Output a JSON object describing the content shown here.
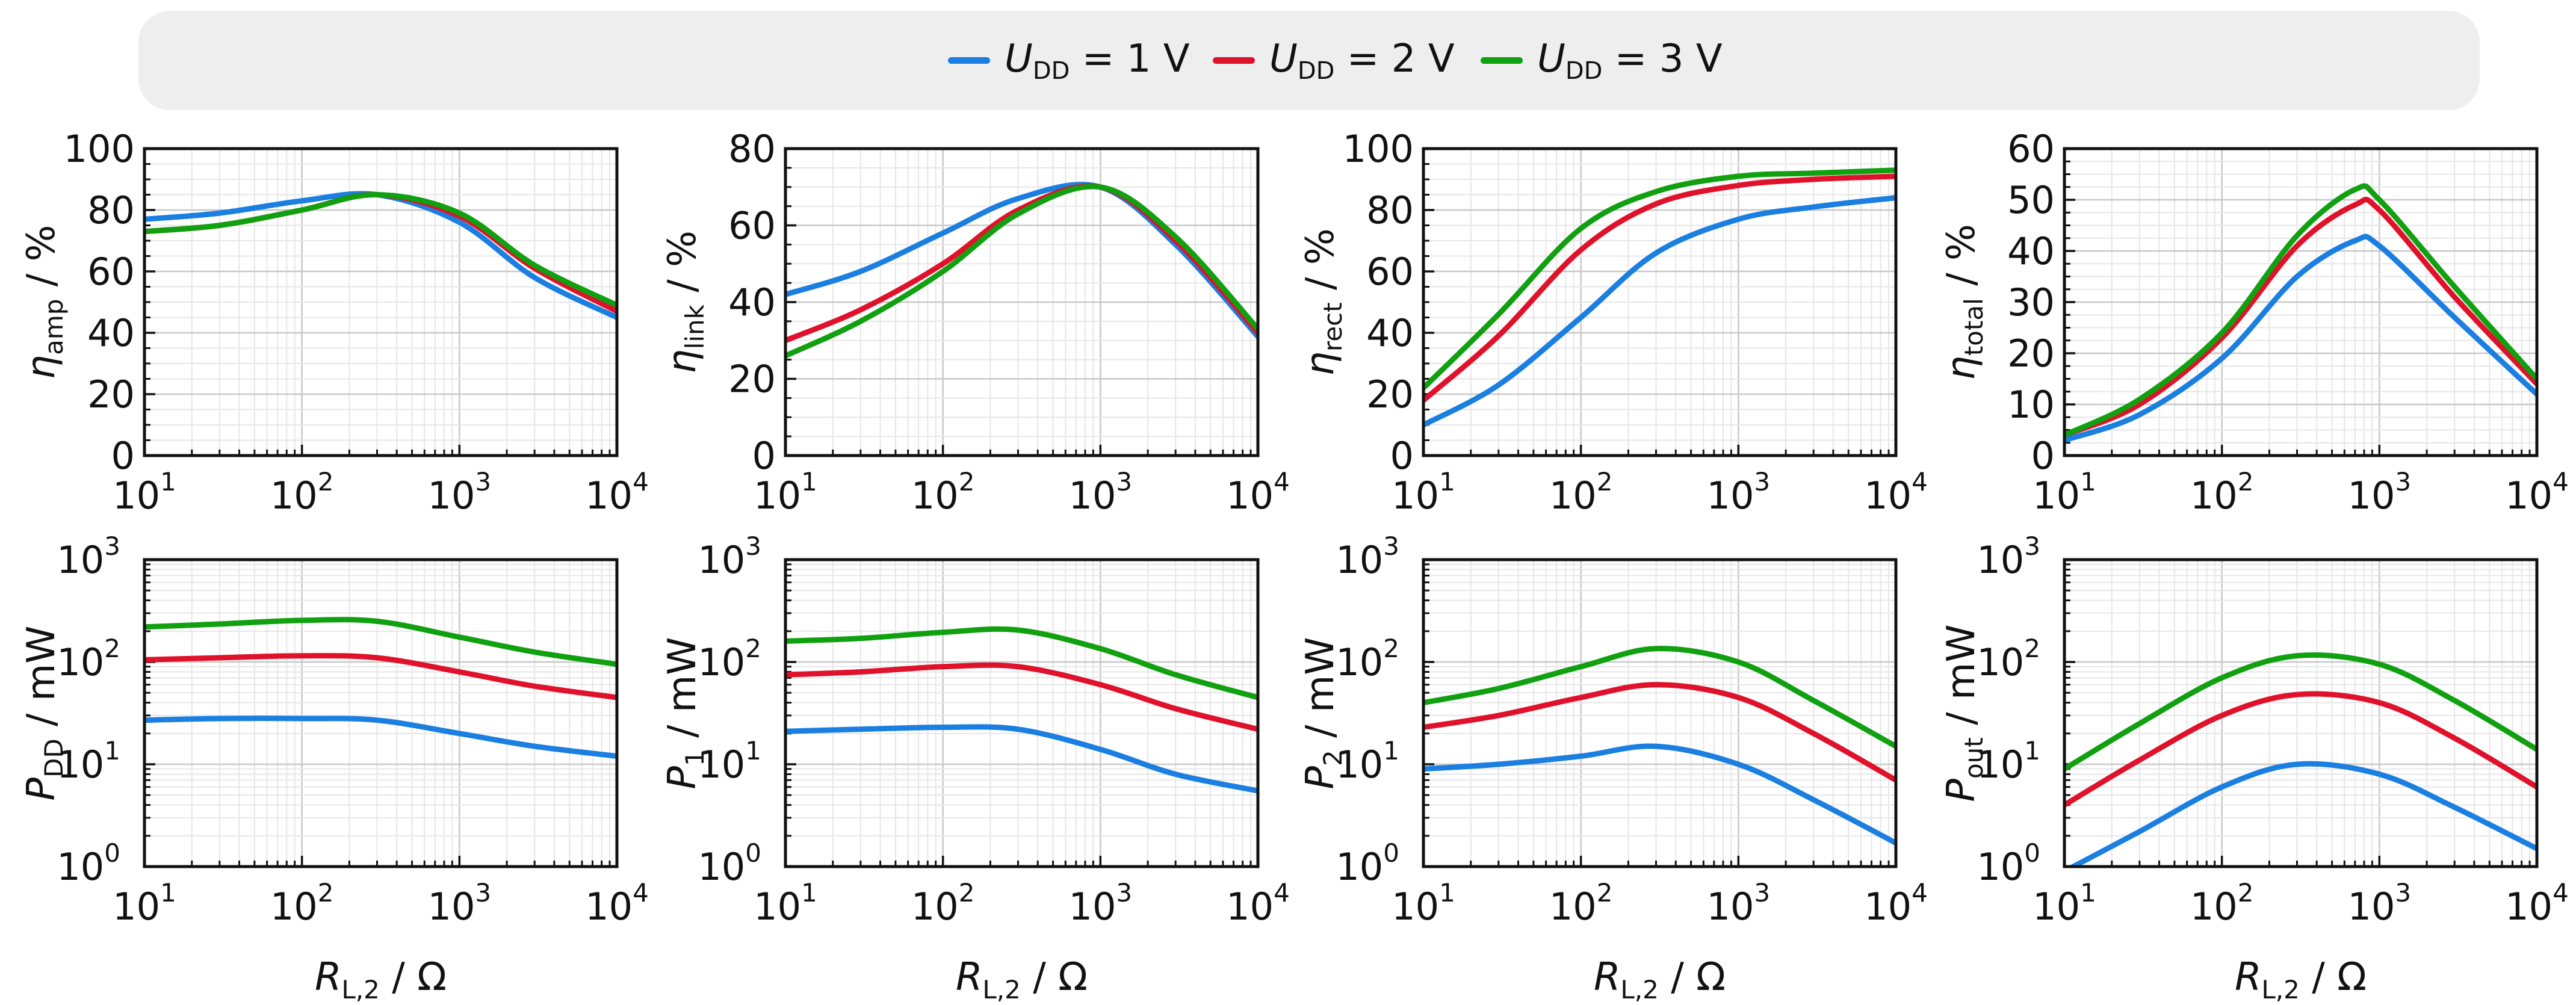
{
  "legend": [
    {
      "var": "U",
      "sub": "DD",
      "rest": " = 1 V",
      "color": "#1a7fe0"
    },
    {
      "var": "U",
      "sub": "DD",
      "rest": " = 2 V",
      "color": "#e0122b"
    },
    {
      "var": "U",
      "sub": "DD",
      "rest": " = 3 V",
      "color": "#10a010"
    }
  ],
  "x_axis_label": {
    "var": "R",
    "sub": "L,2",
    "rest": " / Ω"
  },
  "chart_data": [
    {
      "type": "line",
      "x_scale": "log",
      "xlim": [
        10,
        10000
      ],
      "y_scale": "linear",
      "ylim": [
        0,
        100
      ],
      "yticks": [
        0,
        20,
        40,
        60,
        80,
        100
      ],
      "ylabel": {
        "var": "η",
        "sub": "amp",
        "rest": " / %"
      },
      "x": [
        10,
        30,
        100,
        300,
        1000,
        3000,
        10000
      ],
      "series": [
        {
          "name": "U_DD = 1 V",
          "values": [
            77,
            79,
            83,
            85,
            76,
            58,
            45
          ]
        },
        {
          "name": "U_DD = 2 V",
          "values": [
            73,
            75,
            80,
            85,
            78,
            61,
            47
          ]
        },
        {
          "name": "U_DD = 3 V",
          "values": [
            73,
            75,
            80,
            85,
            79,
            62,
            49
          ]
        }
      ]
    },
    {
      "type": "line",
      "x_scale": "log",
      "xlim": [
        10,
        10000
      ],
      "y_scale": "linear",
      "ylim": [
        0,
        80
      ],
      "yticks": [
        0,
        20,
        40,
        60,
        80
      ],
      "ylabel": {
        "var": "η",
        "sub": "link",
        "rest": " / %"
      },
      "x": [
        10,
        30,
        100,
        300,
        1000,
        3000,
        10000
      ],
      "series": [
        {
          "name": "U_DD = 1 V",
          "values": [
            42,
            48,
            58,
            67,
            70,
            55,
            31
          ]
        },
        {
          "name": "U_DD = 2 V",
          "values": [
            30,
            38,
            50,
            64,
            70,
            56,
            32
          ]
        },
        {
          "name": "U_DD = 3 V",
          "values": [
            26,
            35,
            48,
            63,
            70,
            57,
            33
          ]
        }
      ]
    },
    {
      "type": "line",
      "x_scale": "log",
      "xlim": [
        10,
        10000
      ],
      "y_scale": "linear",
      "ylim": [
        0,
        100
      ],
      "yticks": [
        0,
        20,
        40,
        60,
        80,
        100
      ],
      "ylabel": {
        "var": "η",
        "sub": "rect",
        "rest": " / %"
      },
      "x": [
        10,
        30,
        100,
        300,
        1000,
        3000,
        10000
      ],
      "series": [
        {
          "name": "U_DD = 1 V",
          "values": [
            10,
            23,
            45,
            66,
            77,
            81,
            84
          ]
        },
        {
          "name": "U_DD = 2 V",
          "values": [
            18,
            39,
            67,
            82,
            88,
            90,
            91
          ]
        },
        {
          "name": "U_DD = 3 V",
          "values": [
            22,
            46,
            74,
            86,
            91,
            92,
            93
          ]
        }
      ]
    },
    {
      "type": "line",
      "x_scale": "log",
      "xlim": [
        10,
        10000
      ],
      "y_scale": "linear",
      "ylim": [
        0,
        60
      ],
      "yticks": [
        0,
        10,
        20,
        30,
        40,
        50,
        60
      ],
      "ylabel": {
        "var": "η",
        "sub": "total",
        "rest": " / %"
      },
      "x": [
        10,
        30,
        100,
        300,
        700,
        1000,
        3000,
        10000
      ],
      "series": [
        {
          "name": "U_DD = 1 V",
          "values": [
            3,
            8,
            19,
            35,
            42,
            41,
            27,
            12
          ]
        },
        {
          "name": "U_DD = 2 V",
          "values": [
            4,
            10,
            23,
            41,
            49,
            48,
            31,
            14
          ]
        },
        {
          "name": "U_DD = 3 V",
          "values": [
            4,
            11,
            24,
            43,
            52,
            50,
            33,
            15
          ]
        }
      ]
    },
    {
      "type": "line",
      "x_scale": "log",
      "xlim": [
        10,
        10000
      ],
      "y_scale": "log",
      "ylim": [
        1,
        1000
      ],
      "yticks": [
        1,
        10,
        100,
        1000
      ],
      "ylabel": {
        "var": "P",
        "sub": "DD",
        "rest": " / mW"
      },
      "x": [
        10,
        30,
        100,
        300,
        1000,
        3000,
        10000
      ],
      "series": [
        {
          "name": "U_DD = 1 V",
          "values": [
            27,
            28,
            28,
            27,
            20,
            15,
            12
          ]
        },
        {
          "name": "U_DD = 2 V",
          "values": [
            105,
            110,
            115,
            110,
            80,
            58,
            45
          ]
        },
        {
          "name": "U_DD = 3 V",
          "values": [
            220,
            235,
            255,
            250,
            175,
            125,
            95
          ]
        }
      ]
    },
    {
      "type": "line",
      "x_scale": "log",
      "xlim": [
        10,
        10000
      ],
      "y_scale": "log",
      "ylim": [
        1,
        1000
      ],
      "yticks": [
        1,
        10,
        100,
        1000
      ],
      "ylabel": {
        "var": "P",
        "sub": "1",
        "rest": " / mW"
      },
      "x": [
        10,
        30,
        100,
        300,
        1000,
        3000,
        10000
      ],
      "series": [
        {
          "name": "U_DD = 1 V",
          "values": [
            21,
            22,
            23,
            22,
            14,
            8,
            5.5
          ]
        },
        {
          "name": "U_DD = 2 V",
          "values": [
            75,
            80,
            90,
            90,
            60,
            35,
            22
          ]
        },
        {
          "name": "U_DD = 3 V",
          "values": [
            160,
            170,
            195,
            205,
            135,
            75,
            45
          ]
        }
      ]
    },
    {
      "type": "line",
      "x_scale": "log",
      "xlim": [
        10,
        10000
      ],
      "y_scale": "log",
      "ylim": [
        1,
        1000
      ],
      "yticks": [
        1,
        10,
        100,
        1000
      ],
      "ylabel": {
        "var": "P",
        "sub": "2",
        "rest": " / mW"
      },
      "x": [
        10,
        30,
        100,
        300,
        1000,
        3000,
        10000
      ],
      "series": [
        {
          "name": "U_DD = 1 V",
          "values": [
            9,
            10,
            12,
            15,
            10,
            4.5,
            1.7
          ]
        },
        {
          "name": "U_DD = 2 V",
          "values": [
            23,
            30,
            45,
            60,
            45,
            20,
            7
          ]
        },
        {
          "name": "U_DD = 3 V",
          "values": [
            40,
            55,
            90,
            135,
            100,
            42,
            15
          ]
        }
      ]
    },
    {
      "type": "line",
      "x_scale": "log",
      "xlim": [
        10,
        10000
      ],
      "y_scale": "log",
      "ylim": [
        1,
        1000
      ],
      "yticks": [
        1,
        10,
        100,
        1000
      ],
      "ylabel": {
        "var": "P",
        "sub": "out",
        "rest": " / mW"
      },
      "x": [
        10,
        30,
        100,
        300,
        1000,
        3000,
        10000
      ],
      "series": [
        {
          "name": "U_DD = 1 V",
          "values": [
            0.9,
            2.2,
            6,
            10,
            8,
            3.8,
            1.5
          ]
        },
        {
          "name": "U_DD = 2 V",
          "values": [
            4,
            11,
            30,
            48,
            40,
            18,
            6
          ]
        },
        {
          "name": "U_DD = 3 V",
          "values": [
            9,
            25,
            70,
            115,
            95,
            42,
            14
          ]
        }
      ]
    }
  ]
}
